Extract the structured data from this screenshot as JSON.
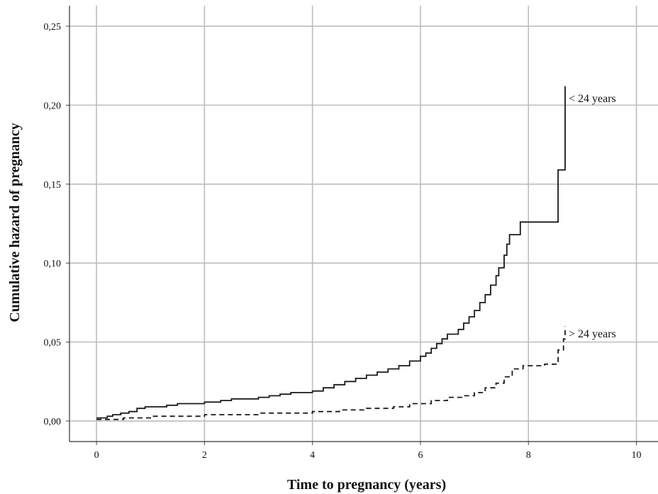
{
  "chart_data": {
    "type": "line",
    "step": true,
    "xlabel": "Time to pregnancy (years)",
    "ylabel": "Cumulative hazard of pregnancy",
    "xlim": [
      -0.5,
      10.4
    ],
    "ylim": [
      -0.013,
      0.263
    ],
    "xticks": [
      0,
      2,
      4,
      6,
      8,
      10
    ],
    "yticks": [
      0.0,
      0.05,
      0.1,
      0.15,
      0.2,
      0.25
    ],
    "xtick_labels": [
      "0",
      "2",
      "4",
      "6",
      "8",
      "10"
    ],
    "ytick_labels": [
      "0,00",
      "0,05",
      "0,10",
      "0,15",
      "0,20",
      "0,25"
    ],
    "grid": true,
    "series": [
      {
        "name": "< 24 years",
        "line_style": "solid",
        "color": "#1a1a1a",
        "x": [
          0.0,
          0.2,
          0.3,
          0.45,
          0.6,
          0.75,
          0.9,
          1.1,
          1.3,
          1.5,
          1.7,
          2.0,
          2.3,
          2.5,
          2.7,
          3.0,
          3.2,
          3.4,
          3.6,
          4.0,
          4.2,
          4.4,
          4.6,
          4.8,
          5.0,
          5.2,
          5.4,
          5.6,
          5.8,
          6.0,
          6.1,
          6.2,
          6.3,
          6.4,
          6.5,
          6.7,
          6.8,
          6.9,
          7.0,
          7.1,
          7.2,
          7.3,
          7.4,
          7.45,
          7.55,
          7.6,
          7.65,
          7.7,
          7.85,
          8.55,
          8.68
        ],
        "values": [
          0.002,
          0.003,
          0.004,
          0.005,
          0.006,
          0.008,
          0.009,
          0.009,
          0.01,
          0.011,
          0.011,
          0.012,
          0.013,
          0.014,
          0.014,
          0.015,
          0.016,
          0.017,
          0.018,
          0.019,
          0.021,
          0.023,
          0.025,
          0.027,
          0.029,
          0.031,
          0.033,
          0.035,
          0.038,
          0.041,
          0.043,
          0.046,
          0.049,
          0.052,
          0.055,
          0.058,
          0.062,
          0.066,
          0.07,
          0.075,
          0.08,
          0.086,
          0.092,
          0.097,
          0.105,
          0.112,
          0.118,
          0.118,
          0.126,
          0.159,
          0.212
        ]
      },
      {
        "name": "> 24 years",
        "line_style": "dashed",
        "color": "#1a1a1a",
        "x": [
          0.0,
          0.25,
          0.5,
          1.0,
          1.5,
          2.0,
          2.5,
          3.0,
          3.5,
          4.0,
          4.5,
          5.0,
          5.5,
          5.8,
          6.2,
          6.5,
          6.8,
          7.0,
          7.2,
          7.4,
          7.55,
          7.7,
          7.9,
          8.3,
          8.55,
          8.65,
          8.68
        ],
        "values": [
          0.001,
          0.001,
          0.002,
          0.003,
          0.003,
          0.004,
          0.004,
          0.005,
          0.005,
          0.006,
          0.007,
          0.008,
          0.009,
          0.011,
          0.013,
          0.015,
          0.016,
          0.018,
          0.021,
          0.024,
          0.028,
          0.033,
          0.035,
          0.036,
          0.045,
          0.052,
          0.06
        ]
      }
    ]
  }
}
